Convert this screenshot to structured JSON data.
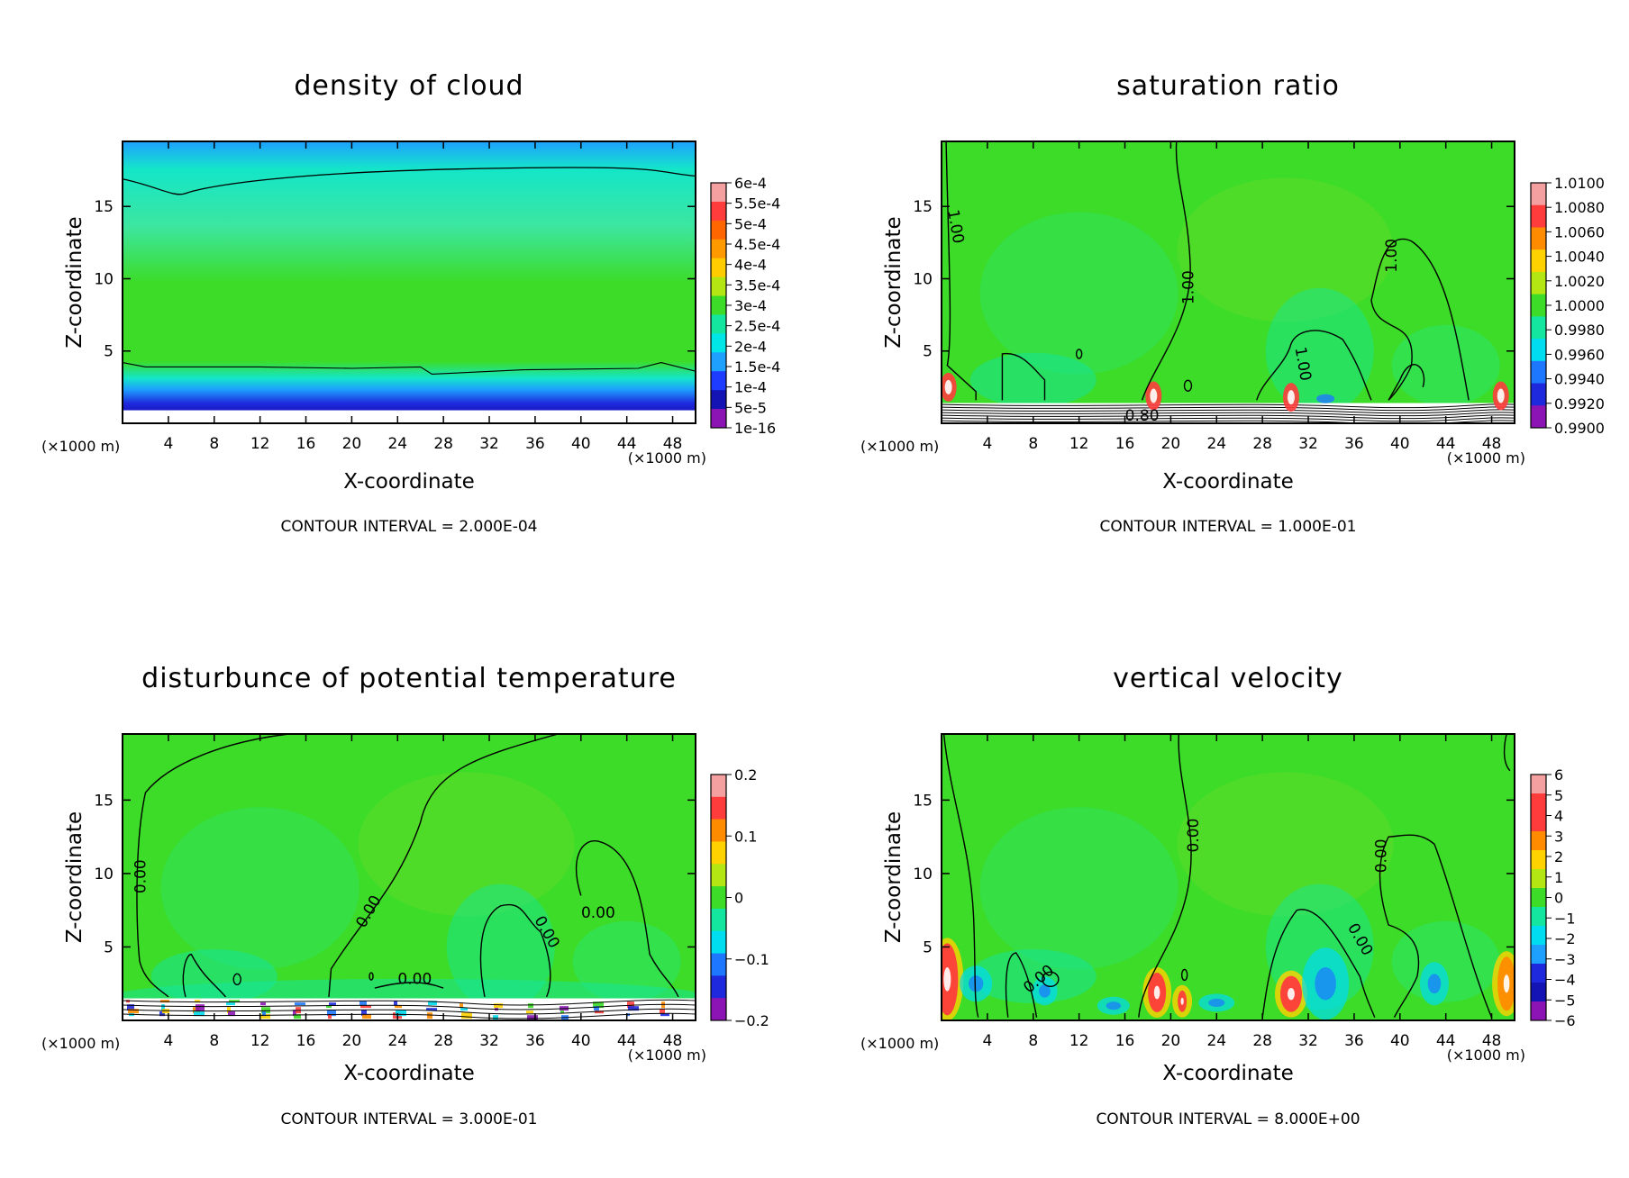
{
  "chart_data": [
    {
      "type": "heatmap",
      "title": "density of cloud",
      "xlabel": "X-coordinate",
      "ylabel": "Z-coordinate",
      "x_unit": "(×1000 m)",
      "y_unit": "(×1000 m)",
      "xlim": [
        0,
        50
      ],
      "ylim": [
        0,
        19.5
      ],
      "x_ticks": [
        4,
        8,
        12,
        16,
        20,
        24,
        28,
        32,
        36,
        40,
        44,
        48
      ],
      "y_ticks": [
        5,
        10,
        15
      ],
      "colorbar": {
        "labels": [
          "6e-4",
          "5.5e-4",
          "5e-4",
          "4.5e-4",
          "4e-4",
          "3.5e-4",
          "3e-4",
          "2.5e-4",
          "2e-4",
          "1.5e-4",
          "1e-4",
          "5e-5",
          "1e-16"
        ],
        "colors": [
          "#f4a0a0",
          "#ff3c3c",
          "#ff6600",
          "#ff9900",
          "#ffcc00",
          "#b4e614",
          "#3cdc28",
          "#14e6a0",
          "#00e6e6",
          "#1ea0ff",
          "#1e3cff",
          "#1414b4",
          "#8c14b4"
        ]
      },
      "contour_interval": "CONTOUR INTERVAL = 2.000E-04",
      "contour_labels": []
    },
    {
      "type": "heatmap",
      "title": "saturation ratio",
      "xlabel": "X-coordinate",
      "ylabel": "Z-coordinate",
      "x_unit": "(×1000 m)",
      "y_unit": "(×1000 m)",
      "xlim": [
        0,
        50
      ],
      "ylim": [
        0,
        19.5
      ],
      "x_ticks": [
        4,
        8,
        12,
        16,
        20,
        24,
        28,
        32,
        36,
        40,
        44,
        48
      ],
      "y_ticks": [
        5,
        10,
        15
      ],
      "colorbar": {
        "labels": [
          "1.0100",
          "1.0080",
          "1.0060",
          "1.0040",
          "1.0020",
          "1.0000",
          "0.9980",
          "0.9960",
          "0.9940",
          "0.9920",
          "0.9900"
        ],
        "colors": [
          "#f4a0a0",
          "#ff3c3c",
          "#ff8c00",
          "#ffd200",
          "#b4e614",
          "#3cdc28",
          "#14e6a0",
          "#00dcf0",
          "#1e78ff",
          "#1e28dc",
          "#8c14b4"
        ]
      },
      "contour_interval": "CONTOUR INTERVAL = 1.000E-01",
      "contour_labels": [
        "1.00",
        "1.00",
        "1.00",
        "1.00",
        "0.80"
      ]
    },
    {
      "type": "heatmap",
      "title": "disturbunce of potential temperature",
      "xlabel": "X-coordinate",
      "ylabel": "Z-coordinate",
      "x_unit": "(×1000 m)",
      "y_unit": "(×1000 m)",
      "xlim": [
        0,
        50
      ],
      "ylim": [
        0,
        19.5
      ],
      "x_ticks": [
        4,
        8,
        12,
        16,
        20,
        24,
        28,
        32,
        36,
        40,
        44,
        48
      ],
      "y_ticks": [
        5,
        10,
        15
      ],
      "colorbar": {
        "labels": [
          "0.2",
          "0.1",
          "0",
          "−0.1",
          "−0.2"
        ],
        "colors": [
          "#f4a0a0",
          "#ff3c3c",
          "#ff8c00",
          "#ffd200",
          "#b4e614",
          "#3cdc28",
          "#14e6a0",
          "#00dcf0",
          "#1e78ff",
          "#1e28dc",
          "#8c14b4"
        ]
      },
      "contour_interval": "CONTOUR INTERVAL = 3.000E-01",
      "contour_labels": [
        "0.00",
        "0.00",
        "0.00",
        "0.00",
        "0.00"
      ]
    },
    {
      "type": "heatmap",
      "title": "vertical velocity",
      "xlabel": "X-coordinate",
      "ylabel": "Z-coordinate",
      "x_unit": "(×1000 m)",
      "y_unit": "(×1000 m)",
      "xlim": [
        0,
        50
      ],
      "ylim": [
        0,
        19.5
      ],
      "x_ticks": [
        4,
        8,
        12,
        16,
        20,
        24,
        28,
        32,
        36,
        40,
        44,
        48
      ],
      "y_ticks": [
        5,
        10,
        15
      ],
      "colorbar": {
        "labels": [
          "6",
          "5",
          "4",
          "3",
          "2",
          "1",
          "0",
          "−1",
          "−2",
          "−3",
          "−4",
          "−5",
          "−6"
        ],
        "colors": [
          "#f4a0a0",
          "#ff3c3c",
          "#ff3c3c",
          "#ff8c00",
          "#ffd200",
          "#b4e614",
          "#3cdc28",
          "#14e6a0",
          "#00dcf0",
          "#1ea0ff",
          "#1e28dc",
          "#1414b4",
          "#8c14b4"
        ]
      },
      "contour_interval": "CONTOUR INTERVAL = 8.000E+00",
      "contour_labels": [
        "0.00",
        "0.00",
        "0.00",
        "0.00"
      ]
    }
  ]
}
